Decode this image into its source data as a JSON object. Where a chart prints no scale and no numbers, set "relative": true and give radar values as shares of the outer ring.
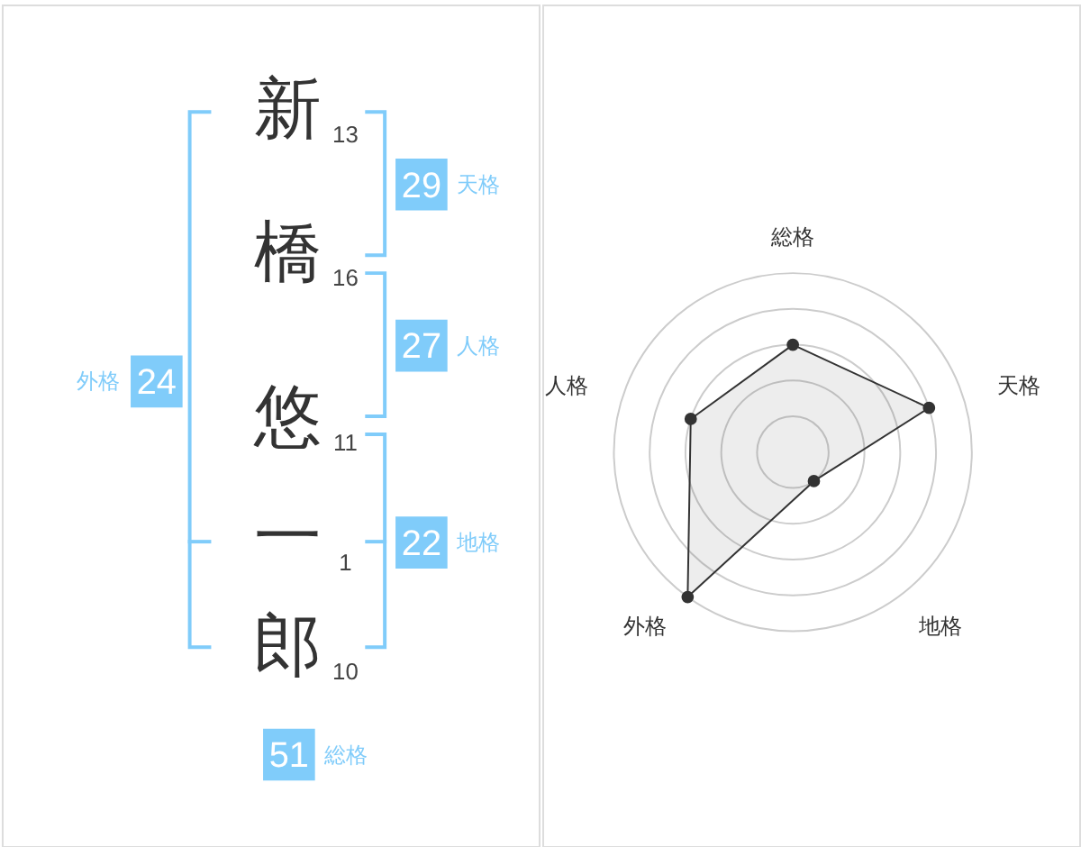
{
  "chart_data": [
    {
      "type": "other",
      "categories": [
        "新",
        "橋",
        "悠",
        "一",
        "郎"
      ],
      "values": [
        13,
        16,
        11,
        1,
        10
      ],
      "data_labels": true,
      "annotations": [
        "29",
        "天格",
        "27",
        "人格",
        "22",
        "地格",
        "24",
        "外格",
        "51",
        "総格"
      ]
    },
    {
      "type": "radar",
      "categories": [
        "総格",
        "天格",
        "地格",
        "外格",
        "人格"
      ],
      "relative": true,
      "grid": true,
      "marker": "circle",
      "series": [
        {
          "color": "#333333",
          "values": [
            0.6,
            0.8,
            0.2,
            1.0,
            0.6
          ]
        }
      ]
    }
  ]
}
